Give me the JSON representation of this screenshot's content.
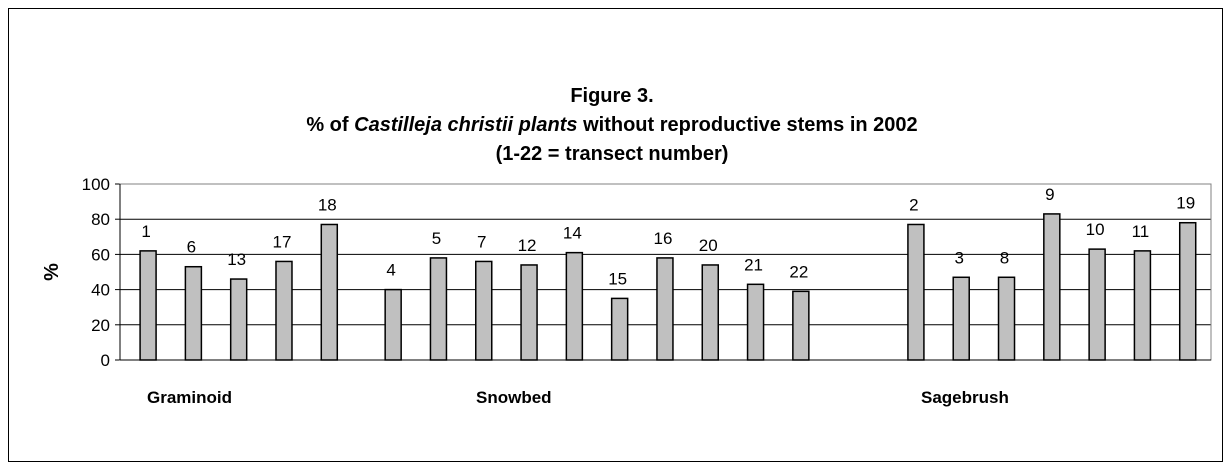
{
  "chart_data": {
    "type": "bar",
    "title": "Figure 3.",
    "subtitle": {
      "prefix": "% of ",
      "italic": "Castilleja christii plants",
      "suffix": " without  reproductive stems in 2002"
    },
    "note": "(1-22 = transect number)",
    "ylabel": "%",
    "ylim": [
      0,
      100
    ],
    "yticks": [
      0,
      20,
      40,
      60,
      80,
      100
    ],
    "grid": true,
    "color": "#c0c0c0",
    "groups": [
      {
        "name": "Graminoid",
        "categories": [
          "1",
          "6",
          "13",
          "17",
          "18"
        ],
        "values": [
          62,
          53,
          46,
          56,
          77
        ]
      },
      {
        "name": "Snowbed",
        "categories": [
          "4",
          "5",
          "7",
          "12",
          "14",
          "15",
          "16",
          "20",
          "21",
          "22"
        ],
        "values": [
          40,
          58,
          56,
          54,
          61,
          35,
          58,
          54,
          43,
          39
        ]
      },
      {
        "name": "Sagebrush",
        "categories": [
          "2",
          "3",
          "8",
          "9",
          "10",
          "11",
          "19"
        ],
        "values": [
          77,
          47,
          47,
          83,
          63,
          62,
          78
        ]
      }
    ]
  }
}
